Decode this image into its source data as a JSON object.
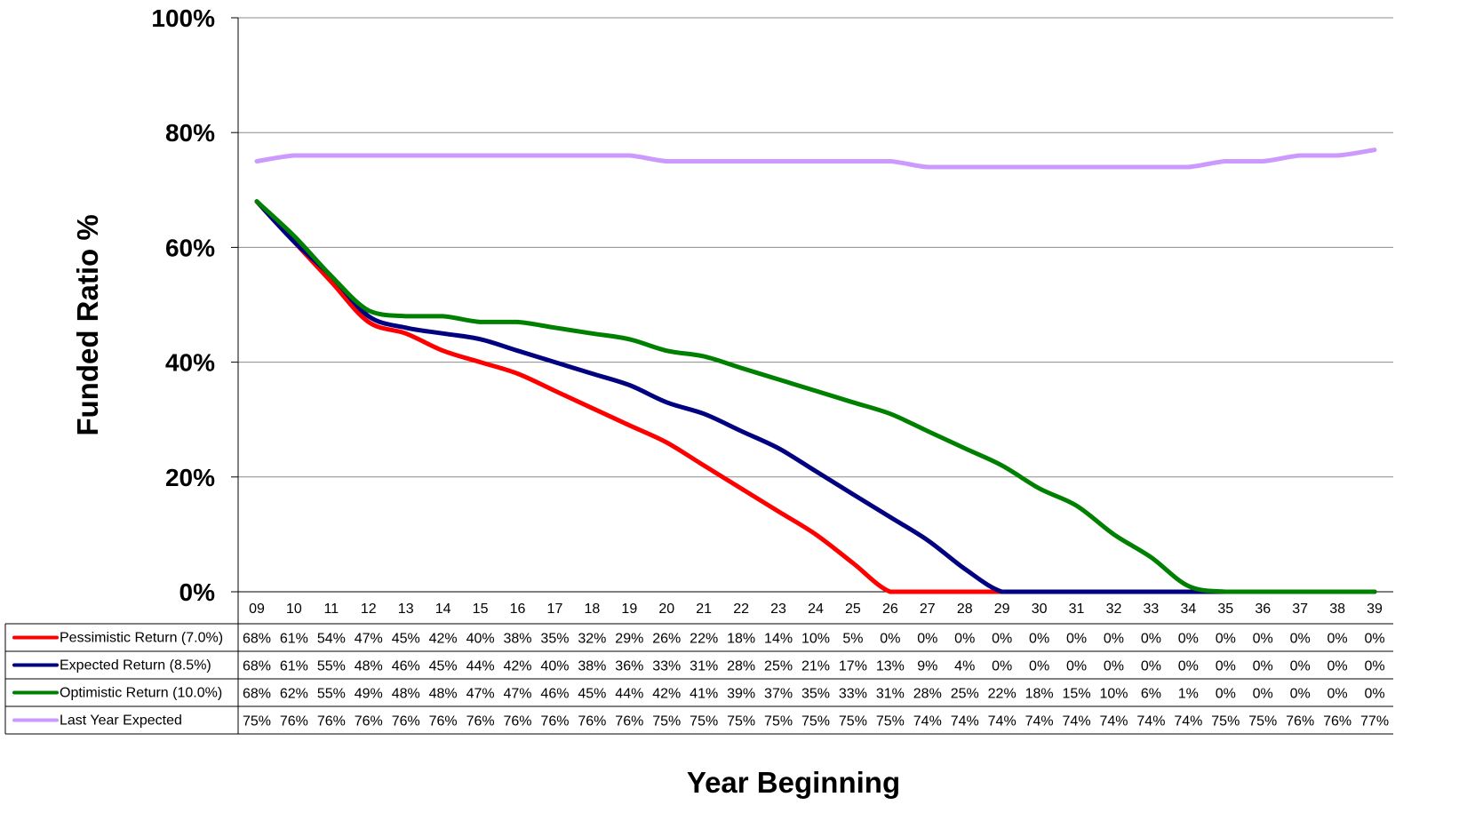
{
  "chart_data": {
    "type": "line",
    "xlabel": "Year Beginning",
    "ylabel": "Funded Ratio %",
    "ylim": [
      0,
      100
    ],
    "yticks": [
      "0%",
      "20%",
      "40%",
      "60%",
      "80%",
      "100%"
    ],
    "grid": "horizontal",
    "legend": "data-table-bottom",
    "categories": [
      "09",
      "10",
      "11",
      "12",
      "13",
      "14",
      "15",
      "16",
      "17",
      "18",
      "19",
      "20",
      "21",
      "22",
      "23",
      "24",
      "25",
      "26",
      "27",
      "28",
      "29",
      "30",
      "31",
      "32",
      "33",
      "34",
      "35",
      "36",
      "37",
      "38",
      "39"
    ],
    "series": [
      {
        "name": "Pessimistic Return (7.0%)",
        "color": "#ff0000",
        "values": [
          68,
          61,
          54,
          47,
          45,
          42,
          40,
          38,
          35,
          32,
          29,
          26,
          22,
          18,
          14,
          10,
          5,
          0,
          0,
          0,
          0,
          0,
          0,
          0,
          0,
          0,
          0,
          0,
          0,
          0,
          0
        ],
        "labels": [
          "68%",
          "61%",
          "54%",
          "47%",
          "45%",
          "42%",
          "40%",
          "38%",
          "35%",
          "32%",
          "29%",
          "26%",
          "22%",
          "18%",
          "14%",
          "10%",
          "5%",
          "0%",
          "0%",
          "0%",
          "0%",
          "0%",
          "0%",
          "0%",
          "0%",
          "0%",
          "0%",
          "0%",
          "0%",
          "0%",
          "0%"
        ]
      },
      {
        "name": "Expected Return (8.5%)",
        "color": "#000080",
        "values": [
          68,
          61,
          55,
          48,
          46,
          45,
          44,
          42,
          40,
          38,
          36,
          33,
          31,
          28,
          25,
          21,
          17,
          13,
          9,
          4,
          0,
          0,
          0,
          0,
          0,
          0,
          0,
          0,
          0,
          0,
          0
        ],
        "labels": [
          "68%",
          "61%",
          "55%",
          "48%",
          "46%",
          "45%",
          "44%",
          "42%",
          "40%",
          "38%",
          "36%",
          "33%",
          "31%",
          "28%",
          "25%",
          "21%",
          "17%",
          "13%",
          "9%",
          "4%",
          "0%",
          "0%",
          "0%",
          "0%",
          "0%",
          "0%",
          "0%",
          "0%",
          "0%",
          "0%",
          "0%"
        ]
      },
      {
        "name": "Optimistic Return (10.0%)",
        "color": "#008000",
        "values": [
          68,
          62,
          55,
          49,
          48,
          48,
          47,
          47,
          46,
          45,
          44,
          42,
          41,
          39,
          37,
          35,
          33,
          31,
          28,
          25,
          22,
          18,
          15,
          10,
          6,
          1,
          0,
          0,
          0,
          0,
          0
        ],
        "labels": [
          "68%",
          "62%",
          "55%",
          "49%",
          "48%",
          "48%",
          "47%",
          "47%",
          "46%",
          "45%",
          "44%",
          "42%",
          "41%",
          "39%",
          "37%",
          "35%",
          "33%",
          "31%",
          "28%",
          "25%",
          "22%",
          "18%",
          "15%",
          "10%",
          "6%",
          "1%",
          "0%",
          "0%",
          "0%",
          "0%",
          "0%"
        ]
      },
      {
        "name": "Last Year Expected",
        "color": "#cc99ff",
        "values": [
          75,
          76,
          76,
          76,
          76,
          76,
          76,
          76,
          76,
          76,
          76,
          75,
          75,
          75,
          75,
          75,
          75,
          75,
          74,
          74,
          74,
          74,
          74,
          74,
          74,
          74,
          75,
          75,
          76,
          76,
          77
        ],
        "labels": [
          "75%",
          "76%",
          "76%",
          "76%",
          "76%",
          "76%",
          "76%",
          "76%",
          "76%",
          "76%",
          "76%",
          "75%",
          "75%",
          "75%",
          "75%",
          "75%",
          "75%",
          "75%",
          "74%",
          "74%",
          "74%",
          "74%",
          "74%",
          "74%",
          "74%",
          "74%",
          "75%",
          "75%",
          "76%",
          "76%",
          "77%"
        ]
      }
    ]
  }
}
